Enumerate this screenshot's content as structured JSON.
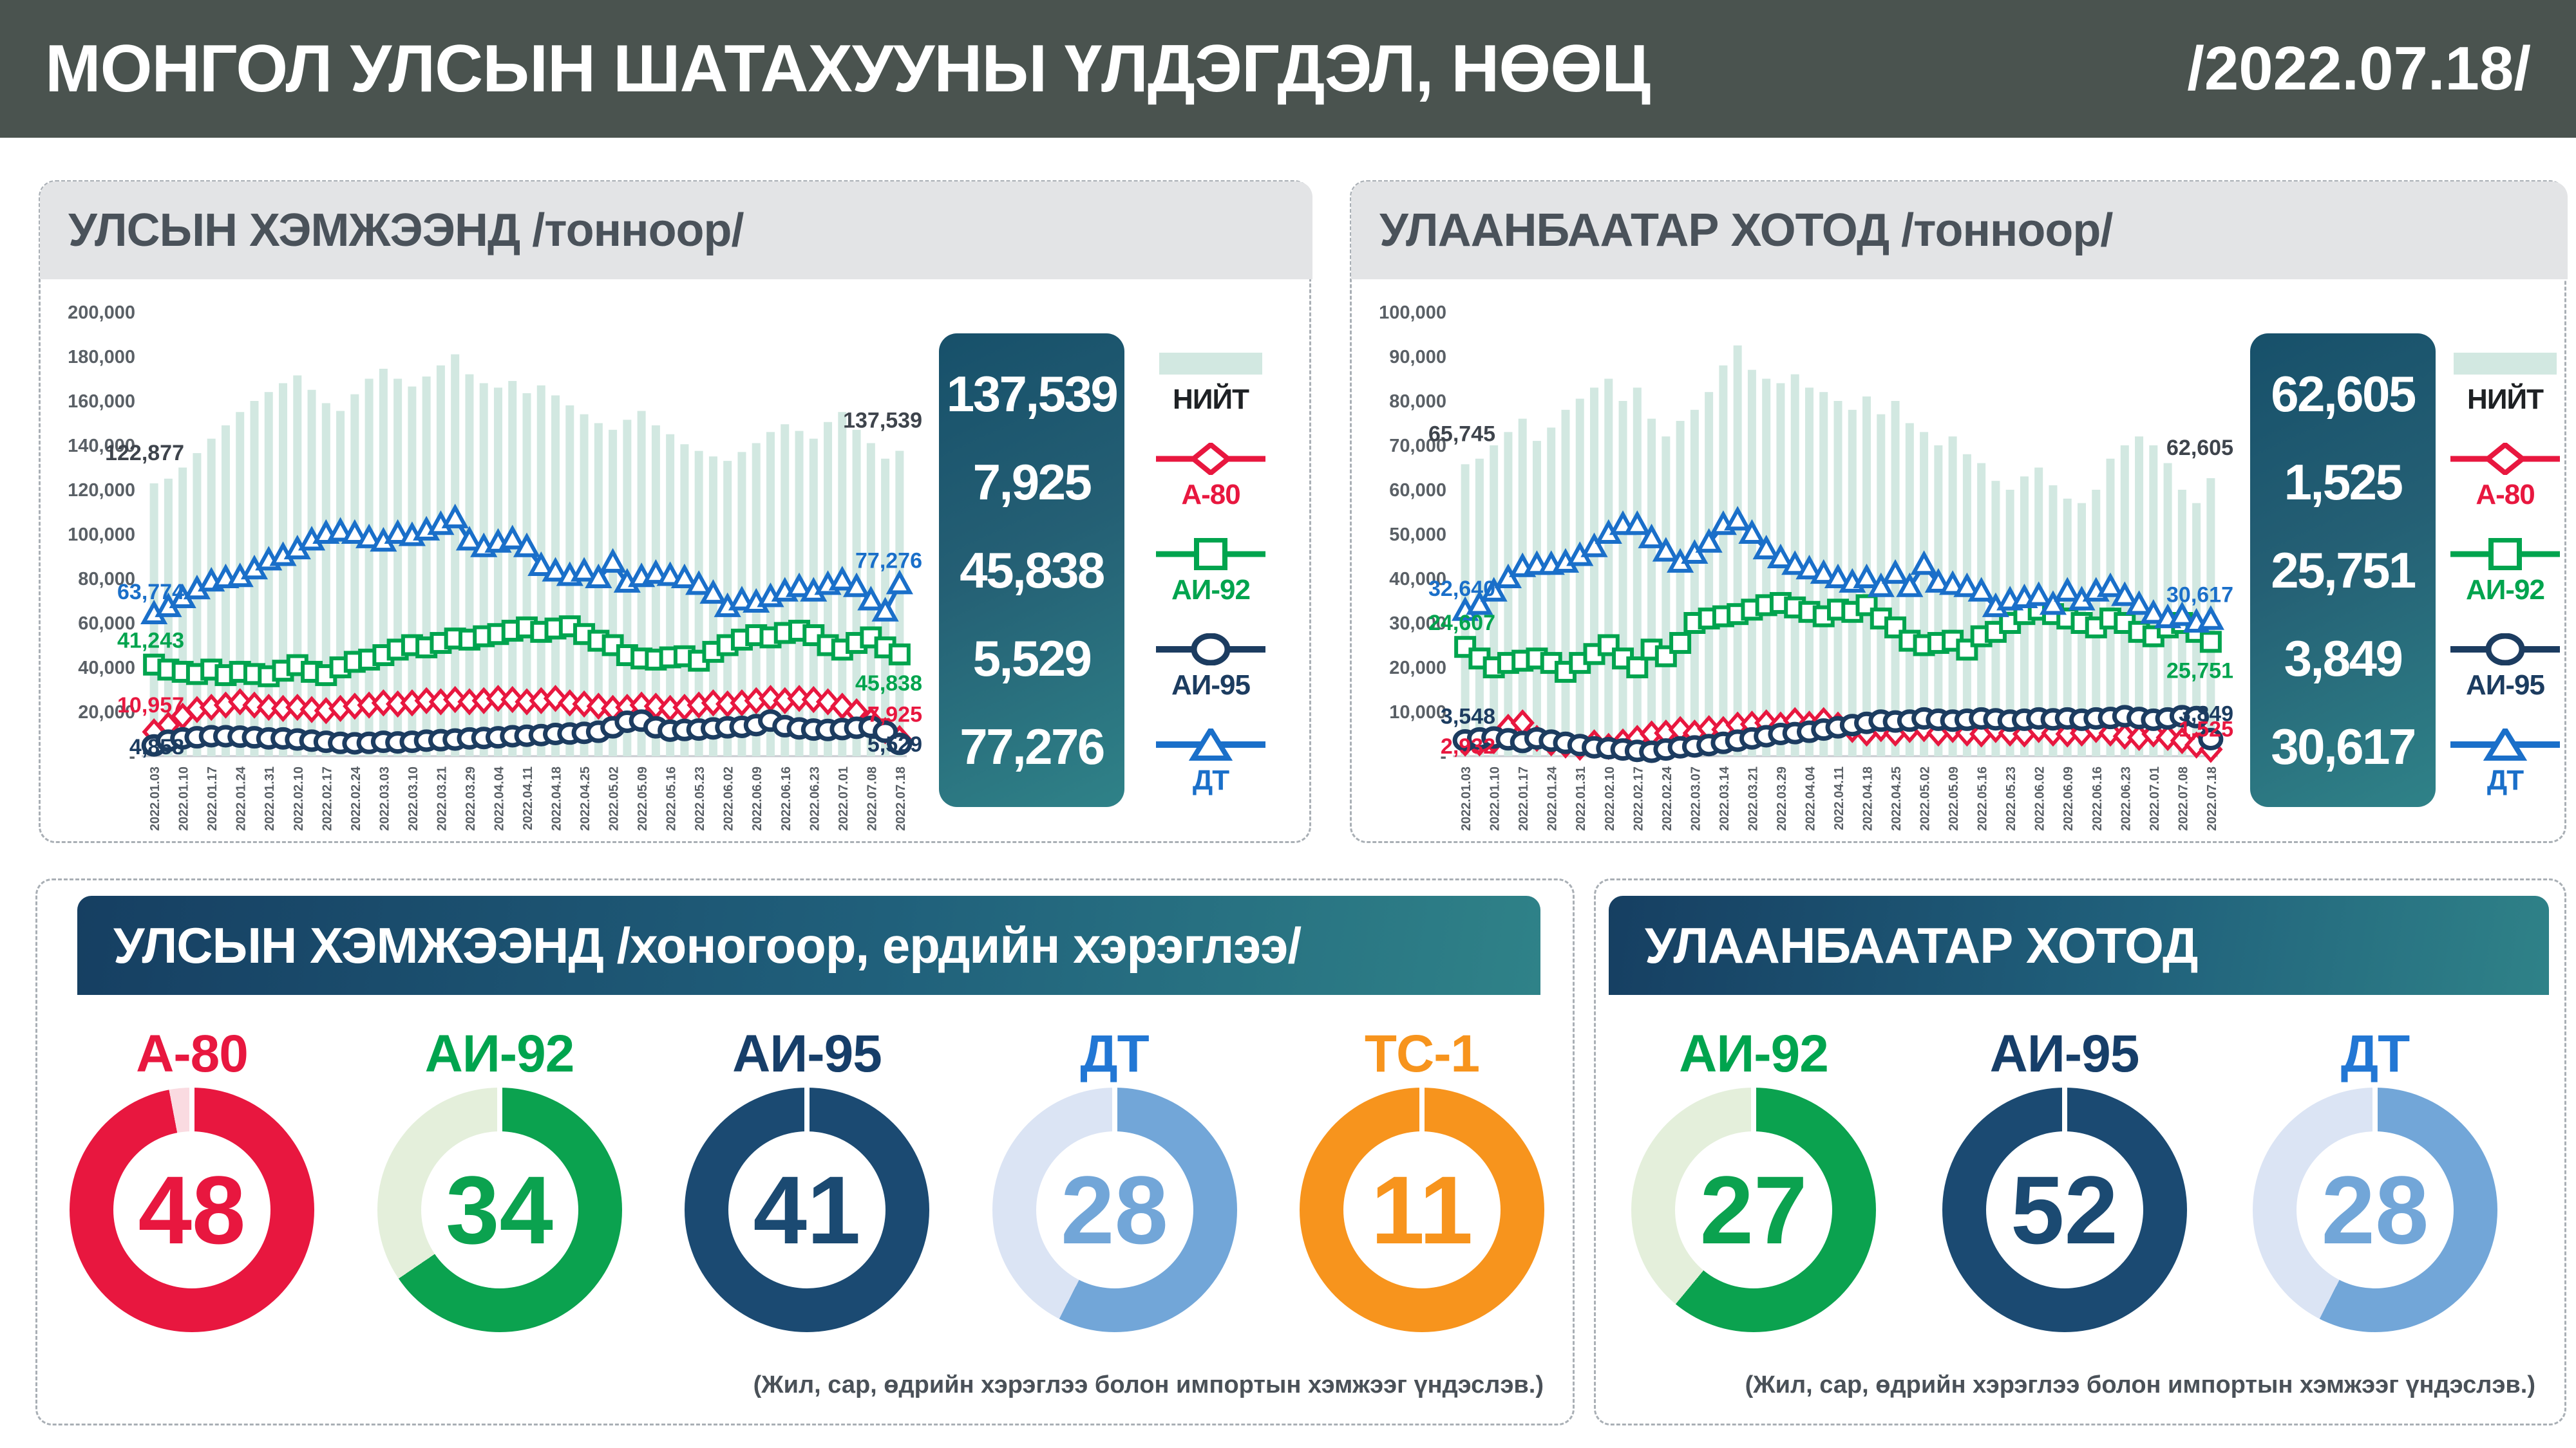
{
  "header": {
    "title": "МОНГОЛ УЛСЫН ШАТАХУУНЫ ҮЛДЭГДЭЛ, НӨӨЦ",
    "date": "/2022.07.18/"
  },
  "colors": {
    "header_bg": "#4a534f",
    "panel_head_bg": "#e3e4e6",
    "card_gradient_start": "#17506a",
    "card_gradient_end": "#2f8288",
    "total_bar": "#d2e8e1",
    "a80_red": "#e8173f",
    "ai92_green": "#00a44e",
    "ai95_navy": "#1c3c60",
    "dt_blue": "#1a6fc9",
    "dt_lightblue": "#72a6d8",
    "tc1_orange": "#f7941d",
    "axis_text": "#5a6066",
    "dark_label": "#3e444c"
  },
  "panels": {
    "national": {
      "title": "УЛСЫН ХЭМЖЭЭНД /тонноор/",
      "summary": [
        "137,539",
        "7,925",
        "45,838",
        "5,529",
        "77,276"
      ],
      "legend": [
        "НИЙТ",
        "А-80",
        "АИ-92",
        "АИ-95",
        "ДТ"
      ]
    },
    "ulaanbaatar": {
      "title": "УЛААНБААТАР ХОТОД /тонноор/",
      "summary": [
        "62,605",
        "1,525",
        "25,751",
        "3,849",
        "30,617"
      ],
      "legend": [
        "НИЙТ",
        "А-80",
        "АИ-92",
        "АИ-95",
        "ДТ"
      ]
    }
  },
  "chart_data": [
    {
      "type": "bar",
      "title": "УЛСЫН ХЭМЖЭЭНД /тонноор/",
      "ylim": [
        0,
        200000
      ],
      "yticks": [
        "200,000",
        "180,000",
        "160,000",
        "140,000",
        "120,000",
        "100,000",
        "80,000",
        "60,000",
        "40,000",
        "20,000",
        "-"
      ],
      "x_labels": [
        "2022.01.03",
        "2022.01.10",
        "2022.01.17",
        "2022.01.24",
        "2022.01.31",
        "2022.02.10",
        "2022.02.17",
        "2022.02.24",
        "2022.03.03",
        "2022.03.10",
        "2022.03.21",
        "2022.03.29",
        "2022.04.04",
        "2022.04.11",
        "2022.04.18",
        "2022.04.25",
        "2022.05.02",
        "2022.05.09",
        "2022.05.16",
        "2022.05.23",
        "2022.06.02",
        "2022.06.09",
        "2022.06.16",
        "2022.06.23",
        "2022.07.01",
        "2022.07.08",
        "2022.07.18"
      ],
      "grid": false,
      "legend_position": "right",
      "series": [
        {
          "name": "НИЙТ",
          "type": "bar",
          "color": "#d2e8e1",
          "start_label": "122,877",
          "end_label": "137,539",
          "start_dy": -36,
          "end_dy": -36,
          "values": [
            122877,
            125000,
            130000,
            136500,
            143000,
            149000,
            155000,
            160000,
            164000,
            168000,
            171500,
            165000,
            159000,
            155500,
            163000,
            170000,
            174500,
            170000,
            166500,
            171000,
            176000,
            181000,
            172000,
            168000,
            166000,
            169000,
            163500,
            167000,
            162500,
            158000,
            154000,
            150000,
            147000,
            151500,
            155500,
            149000,
            145000,
            140500,
            137500,
            135000,
            133000,
            137000,
            141000,
            146000,
            149500,
            146500,
            143000,
            150500,
            155000,
            147000,
            141000,
            134000,
            137539
          ]
        },
        {
          "name": "А-80",
          "type": "line",
          "marker": "diamond",
          "color": "#e8173f",
          "start_label": "10,957",
          "end_label": "7,925",
          "start_dy": -30,
          "end_dy": -26,
          "values": [
            10957,
            14000,
            18000,
            21000,
            22000,
            23000,
            24500,
            23000,
            22000,
            21500,
            22000,
            21000,
            20500,
            21500,
            22500,
            23000,
            24000,
            23500,
            24000,
            25000,
            24500,
            25500,
            24500,
            25000,
            26000,
            25500,
            24500,
            25000,
            26000,
            24000,
            23500,
            22500,
            21500,
            22000,
            23000,
            22500,
            21500,
            22000,
            23000,
            24000,
            23500,
            24000,
            25000,
            26000,
            25000,
            26000,
            25500,
            24500,
            22500,
            20000,
            16000,
            11500,
            7925
          ]
        },
        {
          "name": "АИ-95",
          "type": "line",
          "marker": "circle",
          "color": "#1c3c60",
          "start_label": "4,858",
          "end_label": "5,529",
          "start_dy": 14,
          "end_dy": 12,
          "values": [
            4858,
            7000,
            8000,
            8500,
            9000,
            9000,
            8800,
            8500,
            8000,
            8000,
            7500,
            7000,
            6500,
            6000,
            5800,
            6000,
            6500,
            6200,
            6500,
            7000,
            7200,
            7500,
            8000,
            8200,
            8500,
            9000,
            9200,
            9500,
            10000,
            10200,
            10500,
            11000,
            13000,
            15500,
            16000,
            13000,
            11500,
            11800,
            12000,
            12500,
            13000,
            13200,
            14000,
            16000,
            13500,
            12500,
            12000,
            11800,
            12200,
            12800,
            13200,
            11000,
            5529
          ]
        },
        {
          "name": "АИ-92",
          "type": "line",
          "marker": "square",
          "color": "#00a44e",
          "start_label": "41,243",
          "end_label": "45,838",
          "start_dy": -26,
          "end_dy": 56,
          "values": [
            41243,
            39000,
            38000,
            37000,
            39000,
            36500,
            38000,
            37000,
            36000,
            38500,
            41000,
            38000,
            36500,
            40000,
            42500,
            43500,
            45500,
            48000,
            50000,
            49000,
            51000,
            53000,
            52500,
            54000,
            55000,
            56500,
            58000,
            56000,
            57500,
            58500,
            55000,
            52000,
            50000,
            45500,
            44000,
            43500,
            44500,
            45000,
            43000,
            47000,
            50000,
            52500,
            54500,
            53500,
            55500,
            56500,
            54500,
            50000,
            48000,
            51000,
            53500,
            49000,
            45838
          ]
        },
        {
          "name": "ДТ",
          "type": "line",
          "marker": "triangle",
          "color": "#1a6fc9",
          "start_label": "63,774",
          "end_label": "77,276",
          "start_dy": -24,
          "end_dy": -26,
          "values": [
            63774,
            67000,
            71000,
            75000,
            78500,
            80000,
            80500,
            84000,
            88000,
            90000,
            93000,
            97000,
            100000,
            101000,
            100000,
            98000,
            96500,
            100000,
            99000,
            101500,
            104000,
            107000,
            97000,
            94000,
            96000,
            97500,
            94000,
            85500,
            83000,
            81000,
            83000,
            80000,
            87000,
            78000,
            80500,
            82000,
            81000,
            80000,
            77000,
            73000,
            67000,
            70000,
            69000,
            71500,
            74000,
            76000,
            74000,
            77000,
            79000,
            76000,
            70000,
            65000,
            77276
          ]
        }
      ]
    },
    {
      "type": "bar",
      "title": "УЛААНБААТАР ХОТОД /тонноор/",
      "ylim": [
        0,
        100000
      ],
      "yticks": [
        "100,000",
        "90,000",
        "80,000",
        "70,000",
        "60,000",
        "50,000",
        "40,000",
        "30,000",
        "20,000",
        "10,000",
        "-"
      ],
      "x_labels": [
        "2022.01.03",
        "2022.01.10",
        "2022.01.17",
        "2022.01.24",
        "2022.01.31",
        "2022.02.10",
        "2022.02.17",
        "2022.02.24",
        "2022.03.07",
        "2022.03.14",
        "2022.03.21",
        "2022.03.29",
        "2022.04.04",
        "2022.04.11",
        "2022.04.18",
        "2022.04.25",
        "2022.05.02",
        "2022.05.09",
        "2022.05.16",
        "2022.05.23",
        "2022.06.02",
        "2022.06.09",
        "2022.06.16",
        "2022.06.23",
        "2022.07.01",
        "2022.07.08",
        "2022.07.18"
      ],
      "grid": false,
      "legend_position": "right",
      "series": [
        {
          "name": "НИЙТ",
          "type": "bar",
          "color": "#d2e8e1",
          "start_label": "65,745",
          "end_label": "62,605",
          "start_dy": -36,
          "end_dy": -36,
          "values": [
            65745,
            67000,
            70000,
            73000,
            76000,
            71000,
            74000,
            78000,
            80500,
            83000,
            85000,
            80000,
            83000,
            76000,
            72000,
            75500,
            78000,
            82000,
            88000,
            92500,
            87000,
            85000,
            84000,
            86000,
            83000,
            82000,
            80000,
            78000,
            81000,
            77000,
            80000,
            75000,
            73000,
            70000,
            72000,
            68000,
            66000,
            62000,
            60000,
            63000,
            65000,
            61000,
            58000,
            57000,
            60000,
            67000,
            70000,
            72000,
            70000,
            66000,
            60000,
            57000,
            62605
          ]
        },
        {
          "name": "А-80",
          "type": "line",
          "marker": "diamond",
          "color": "#e8173f",
          "start_label": "2,932",
          "end_label": "1,525",
          "start_dy": 16,
          "end_dy": -20,
          "values": [
            2932,
            3000,
            3500,
            6500,
            7500,
            4000,
            3000,
            2500,
            2000,
            3000,
            2200,
            3200,
            4000,
            5000,
            5200,
            6000,
            5200,
            6200,
            6000,
            7000,
            7200,
            7500,
            7000,
            8000,
            7200,
            8000,
            7000,
            6000,
            5200,
            6200,
            5200,
            6000,
            6200,
            5200,
            6000,
            5200,
            5000,
            6000,
            5200,
            5000,
            6000,
            5200,
            5000,
            5200,
            6000,
            5200,
            4500,
            4200,
            5000,
            4200,
            3500,
            2500,
            1525
          ]
        },
        {
          "name": "АИ-95",
          "type": "line",
          "marker": "circle",
          "color": "#1c3c60",
          "start_label": "3,548",
          "end_label": "3,849",
          "start_dy": -26,
          "end_dy": -28,
          "values": [
            3548,
            4000,
            4200,
            3800,
            3200,
            4000,
            3500,
            3000,
            2500,
            2000,
            1800,
            1500,
            1200,
            1000,
            1500,
            2000,
            2200,
            2500,
            3000,
            3500,
            4000,
            4500,
            5000,
            5200,
            5500,
            6000,
            6500,
            7000,
            7500,
            8000,
            7800,
            8000,
            8500,
            8200,
            8000,
            8200,
            8500,
            8300,
            8000,
            8200,
            8500,
            8300,
            8500,
            8200,
            8500,
            8600,
            9000,
            8600,
            8200,
            8500,
            9000,
            8800,
            3849
          ]
        },
        {
          "name": "АИ-92",
          "type": "line",
          "marker": "square",
          "color": "#00a44e",
          "start_label": "24,607",
          "end_label": "25,751",
          "start_dy": -26,
          "end_dy": 56,
          "values": [
            24607,
            22000,
            20000,
            21000,
            21500,
            22000,
            21000,
            19000,
            21000,
            23000,
            25000,
            22000,
            20000,
            24000,
            22500,
            25500,
            30000,
            31000,
            31500,
            32000,
            33000,
            34000,
            34500,
            33500,
            32500,
            31500,
            33000,
            32500,
            34000,
            31000,
            29000,
            26000,
            25000,
            25500,
            26000,
            24000,
            27000,
            28000,
            30000,
            32000,
            33000,
            32000,
            31000,
            30000,
            29000,
            31000,
            30000,
            28000,
            27000,
            29000,
            30000,
            28000,
            25751
          ]
        },
        {
          "name": "ДТ",
          "type": "line",
          "marker": "triangle",
          "color": "#1a6fc9",
          "start_label": "32,640",
          "end_label": "30,617",
          "start_dy": -24,
          "end_dy": -28,
          "values": [
            32640,
            34000,
            37000,
            40000,
            42500,
            43000,
            43000,
            43500,
            45000,
            47000,
            50000,
            52000,
            52000,
            49000,
            46000,
            43500,
            45500,
            48000,
            52000,
            53000,
            50000,
            46500,
            44500,
            43000,
            42000,
            41000,
            40000,
            39000,
            40000,
            38000,
            41000,
            38000,
            43000,
            39000,
            38500,
            38000,
            37000,
            33500,
            35000,
            35500,
            36000,
            34000,
            37000,
            35000,
            37000,
            38000,
            36000,
            34000,
            32000,
            31000,
            31500,
            30000,
            30617
          ]
        }
      ]
    }
  ],
  "bottom": {
    "national": {
      "title": "УЛСЫН ХЭМЖЭЭНД /хоногоор, ердийн хэрэглээ/",
      "footnote": "(Жил, сар, өдрийн хэрэглээ болон импортын хэмжээг үндэслэв.)",
      "donuts": [
        {
          "label": "А-80",
          "value": 48,
          "fill": 0.97,
          "color": "#e8173f",
          "pale": "#fadbe1",
          "label_color": "#e8173f",
          "value_color": "#e8173f"
        },
        {
          "label": "АИ-92",
          "value": 34,
          "fill": 0.655,
          "color": "#0ba24f",
          "pale": "#e4efdb",
          "label_color": "#00a44e",
          "value_color": "#0ba24f"
        },
        {
          "label": "АИ-95",
          "value": 41,
          "fill": 1,
          "color": "#1b4a72",
          "pale": "#d7dee8",
          "label_color": "#163e69",
          "value_color": "#1b4a72"
        },
        {
          "label": "ДТ",
          "value": 28,
          "fill": 0.575,
          "color": "#72a6d8",
          "pale": "#dbe4f4",
          "label_color": "#2277d4",
          "value_color": "#72a6d8"
        },
        {
          "label": "ТС-1",
          "value": 11,
          "fill": 1,
          "color": "#f7941d",
          "pale": "#fdead2",
          "label_color": "#f7941d",
          "value_color": "#f7941d"
        }
      ]
    },
    "ulaanbaatar": {
      "title": "УЛААНБААТАР ХОТОД",
      "footnote": "(Жил, сар, өдрийн хэрэглээ болон импортын хэмжээг үндэслэв.)",
      "donuts": [
        {
          "label": "АИ-92",
          "value": 27,
          "fill": 0.61,
          "color": "#0ba24f",
          "pale": "#e4efdb",
          "label_color": "#00a44e",
          "value_color": "#0ba24f"
        },
        {
          "label": "АИ-95",
          "value": 52,
          "fill": 1,
          "color": "#1b4a72",
          "pale": "#d7dee8",
          "label_color": "#163e69",
          "value_color": "#1b4a72"
        },
        {
          "label": "ДТ",
          "value": 28,
          "fill": 0.575,
          "color": "#72a6d8",
          "pale": "#dbe4f4",
          "label_color": "#2277d4",
          "value_color": "#72a6d8"
        }
      ]
    }
  }
}
